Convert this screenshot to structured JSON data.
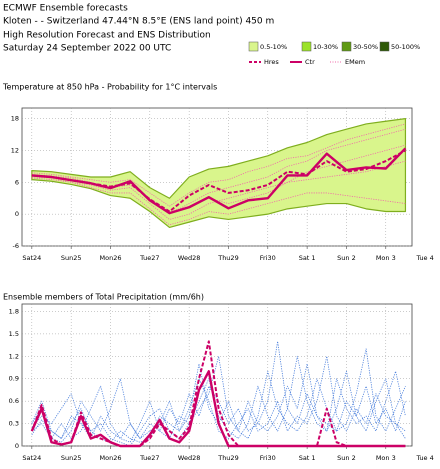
{
  "header": {
    "org": "ECMWF Ensemble forecasts",
    "location": "Kloten - - Switzerland 47.44°N 8.5°E (ENS land point) 450 m",
    "subtitle": "High Resolution Forecast and ENS Distribution",
    "date": "Saturday 24 September 2022 00 UTC"
  },
  "chart_data": [
    {
      "type": "plume",
      "title": "Temperature at 850 hPa - Probability for 1°C intervals",
      "x": [
        0,
        12,
        24,
        36,
        48,
        60,
        72,
        84,
        96,
        108,
        120,
        132,
        144,
        156,
        168,
        180,
        192,
        204,
        216,
        228
      ],
      "xlim": [
        -6,
        232
      ],
      "xticks": [
        {
          "value": 0,
          "label": "Sat24",
          "color": "#000000"
        },
        {
          "value": 24,
          "label": "Sun25",
          "color": "#ff0000"
        },
        {
          "value": 48,
          "label": "Mon26",
          "color": "#000000"
        },
        {
          "value": 72,
          "label": "Tue27",
          "color": "#000000"
        },
        {
          "value": 96,
          "label": "Wed28",
          "color": "#000000"
        },
        {
          "value": 120,
          "label": "Thu29",
          "color": "#000000"
        },
        {
          "value": 144,
          "label": "Fri30",
          "color": "#000000"
        },
        {
          "value": 168,
          "label": "Sat 1",
          "color": "#000000"
        },
        {
          "value": 192,
          "label": "Sun 2",
          "color": "#ff0000"
        },
        {
          "value": 216,
          "label": "Mon 3",
          "color": "#000000"
        },
        {
          "value": 240,
          "label": "Tue 4",
          "color": "#000000"
        }
      ],
      "ylim": [
        -6,
        20
      ],
      "yticks": [
        -6,
        0,
        6,
        12,
        18
      ],
      "grid": true,
      "probability_classes": [
        {
          "name": "0.5-10%",
          "color": "#d9f58c"
        },
        {
          "name": "10-30%",
          "color": "#9be22a"
        },
        {
          "name": "30-50%",
          "color": "#5f9a14"
        },
        {
          "name": "50-100%",
          "color": "#2f5a08"
        }
      ],
      "band": {
        "color": "#d9f58c",
        "edge": "#7fae1e",
        "lower": [
          6.5,
          6.2,
          5.6,
          4.8,
          3.5,
          3,
          0.5,
          -2.5,
          -1.5,
          -0.5,
          -1,
          -0.5,
          0,
          1,
          1.5,
          2,
          2,
          1,
          0.5,
          0.5
        ],
        "upper": [
          8.2,
          8,
          7.5,
          7,
          7,
          8,
          5,
          3,
          7,
          8.5,
          9,
          10,
          11,
          12.5,
          13.5,
          15,
          16,
          17,
          17.5,
          18
        ]
      },
      "members": {
        "name": "EMem",
        "color": "#f06aa8",
        "values": [
          [
            7.5,
            7.2,
            6.8,
            6,
            5,
            5.5,
            3,
            0,
            2,
            4,
            5,
            6,
            7,
            9,
            10,
            12,
            13,
            14,
            15,
            16
          ],
          [
            7,
            6.8,
            6,
            5.5,
            4.5,
            5,
            2,
            -1,
            0,
            2,
            3,
            4,
            5,
            6,
            8,
            9,
            10,
            11,
            12,
            13
          ],
          [
            7.8,
            7.5,
            7,
            6.5,
            6,
            6.5,
            4,
            1.5,
            4,
            6,
            6.5,
            8,
            9,
            10.5,
            11,
            12.5,
            14,
            15,
            16,
            17
          ],
          [
            6.8,
            6.5,
            6,
            5,
            4,
            4,
            1,
            -2,
            -1,
            0.5,
            0,
            1,
            2,
            3,
            4,
            4,
            3.5,
            3,
            2.5,
            2
          ],
          [
            7.2,
            7,
            6.5,
            5.8,
            5,
            6,
            2.5,
            0.5,
            1.5,
            3,
            2,
            3,
            4,
            6,
            6.5,
            7,
            7.5,
            8,
            9,
            10
          ]
        ]
      },
      "series": [
        {
          "name": "Hres",
          "color": "#cc0066",
          "dashed": true,
          "values": [
            7.3,
            7,
            6.4,
            5.8,
            5.2,
            5.8,
            2.8,
            0.5,
            3.5,
            5.5,
            4,
            4.5,
            5.5,
            8,
            7.5,
            10,
            8,
            8.5,
            10,
            12
          ]
        },
        {
          "name": "Ctr",
          "color": "#cc0066",
          "dashed": false,
          "values": [
            7.3,
            7,
            6.4,
            5.8,
            4.9,
            6.2,
            2.6,
            0.2,
            1.3,
            3.2,
            1.1,
            2.6,
            3,
            7.3,
            7.3,
            11.4,
            8.3,
            8.8,
            8.6,
            12.4
          ]
        }
      ]
    },
    {
      "type": "members",
      "title": "Ensemble members of Total Precipitation (mm/6h)",
      "x": [
        0,
        6,
        12,
        18,
        24,
        30,
        36,
        42,
        48,
        54,
        60,
        66,
        72,
        78,
        84,
        90,
        96,
        102,
        108,
        114,
        120,
        126,
        132,
        138,
        144,
        150,
        156,
        162,
        168,
        174,
        180,
        186,
        192,
        198,
        204,
        210,
        216,
        222,
        228
      ],
      "xlim": [
        -6,
        232
      ],
      "xticks": [
        {
          "value": 0,
          "label": "Sat24",
          "color": "#000000"
        },
        {
          "value": 24,
          "label": "Sun25",
          "color": "#ff0000"
        },
        {
          "value": 48,
          "label": "Mon26",
          "color": "#000000"
        },
        {
          "value": 72,
          "label": "Tue27",
          "color": "#000000"
        },
        {
          "value": 96,
          "label": "Wed28",
          "color": "#000000"
        },
        {
          "value": 120,
          "label": "Thu29",
          "color": "#000000"
        },
        {
          "value": 144,
          "label": "Fri30",
          "color": "#000000"
        },
        {
          "value": 168,
          "label": "Sat 1",
          "color": "#000000"
        },
        {
          "value": 192,
          "label": "Sun 2",
          "color": "#ff0000"
        },
        {
          "value": 216,
          "label": "Mon 3",
          "color": "#000000"
        },
        {
          "value": 240,
          "label": "Tue 4",
          "color": "#000000"
        }
      ],
      "ylim": [
        0,
        1.9
      ],
      "yticks": [
        0,
        0.3,
        0.6,
        0.9,
        1.2,
        1.5,
        1.8
      ],
      "grid": true,
      "members": {
        "color": "#4a7fdc",
        "values": [
          [
            0.3,
            0.6,
            0.2,
            0.1,
            0.3,
            0.5,
            0.2,
            0.3,
            0.1,
            0.05,
            0,
            0.2,
            0.4,
            0.5,
            0.2,
            0.1,
            0.3,
            0.6,
            0.9,
            0.4,
            0.2,
            0.1,
            0.3,
            0.8,
            0.4,
            0.2,
            0.5,
            1.2,
            0.6,
            0.3,
            0.2,
            0.5,
            1.0,
            0.4,
            0.2,
            0.6,
            0.9,
            0.3,
            0.1
          ],
          [
            0.25,
            0.4,
            0.3,
            0.5,
            0.7,
            0.3,
            0.1,
            0.4,
            0.2,
            0.1,
            0.3,
            0.1,
            0.2,
            0.3,
            0.6,
            0.2,
            0.4,
            1.1,
            0.5,
            0.3,
            0.6,
            0.2,
            0.1,
            0.4,
            1.0,
            0.5,
            0.3,
            0.2,
            0.4,
            0.9,
            0.5,
            0.2,
            0.3,
            0.7,
            1.3,
            0.4,
            0.2,
            0.5,
            0.8
          ],
          [
            0.2,
            0.3,
            0.1,
            0.05,
            0.2,
            0.6,
            0.4,
            0.2,
            0.5,
            0.9,
            0.3,
            0.1,
            0.3,
            0.2,
            0.5,
            0.3,
            0.7,
            0.4,
            0.8,
            0.6,
            0.3,
            0.5,
            0.2,
            0.3,
            0.6,
            1.4,
            0.5,
            0.3,
            0.7,
            0.4,
            0.2,
            0.9,
            0.5,
            0.3,
            0.4,
            0.2,
            0.6,
            1.0,
            0.4
          ],
          [
            0.3,
            0.5,
            0.1,
            0.3,
            0.1,
            0.2,
            0.5,
            0.8,
            0.3,
            0.1,
            0.05,
            0.3,
            0.6,
            0.2,
            0.1,
            0.4,
            0.3,
            0.5,
            0.7,
            1.2,
            0.4,
            0.2,
            0.6,
            0.3,
            0.2,
            0.4,
            0.8,
            0.5,
            1.1,
            0.4,
            0.3,
            0.2,
            0.6,
            0.4,
            0.8,
            0.3,
            0.5,
            0.2,
            0.6
          ],
          [
            0.15,
            0.35,
            0.2,
            0.1,
            0.4,
            0.3,
            0.2,
            0.1,
            0.05,
            0.2,
            0.1,
            0.05,
            0.1,
            0.4,
            0.3,
            0.2,
            0.5,
            0.9,
            0.6,
            0.2,
            0.1,
            0.3,
            0.5,
            0.2,
            0.3,
            0.6,
            0.2,
            0.4,
            0.3,
            0.6,
            1.2,
            0.4,
            0.2,
            0.5,
            0.3,
            0.7,
            0.4,
            0.3,
            0.2
          ]
        ]
      },
      "series": [
        {
          "color": "#cc0066",
          "dashed": true,
          "values": [
            0.2,
            0.55,
            0.1,
            0.02,
            0.05,
            0.45,
            0.15,
            0.1,
            0.05,
            0,
            0,
            0,
            0.1,
            0.3,
            0.2,
            0.1,
            0.25,
            0.9,
            1.4,
            0.5,
            0.15,
            0,
            0,
            0,
            0,
            0,
            0,
            0,
            0,
            0,
            0.5,
            0.05,
            0,
            0,
            0,
            0,
            0,
            0,
            0
          ]
        },
        {
          "color": "#cc0066",
          "dashed": false,
          "values": [
            0.2,
            0.5,
            0.05,
            0.02,
            0.05,
            0.4,
            0.1,
            0.15,
            0.05,
            0,
            0,
            0,
            0.15,
            0.35,
            0.1,
            0.05,
            0.2,
            0.75,
            1.0,
            0.3,
            0,
            0,
            0,
            0,
            0,
            0,
            0,
            0,
            0,
            0,
            0,
            0,
            0,
            0,
            0,
            0,
            0,
            0,
            0
          ]
        }
      ]
    }
  ]
}
